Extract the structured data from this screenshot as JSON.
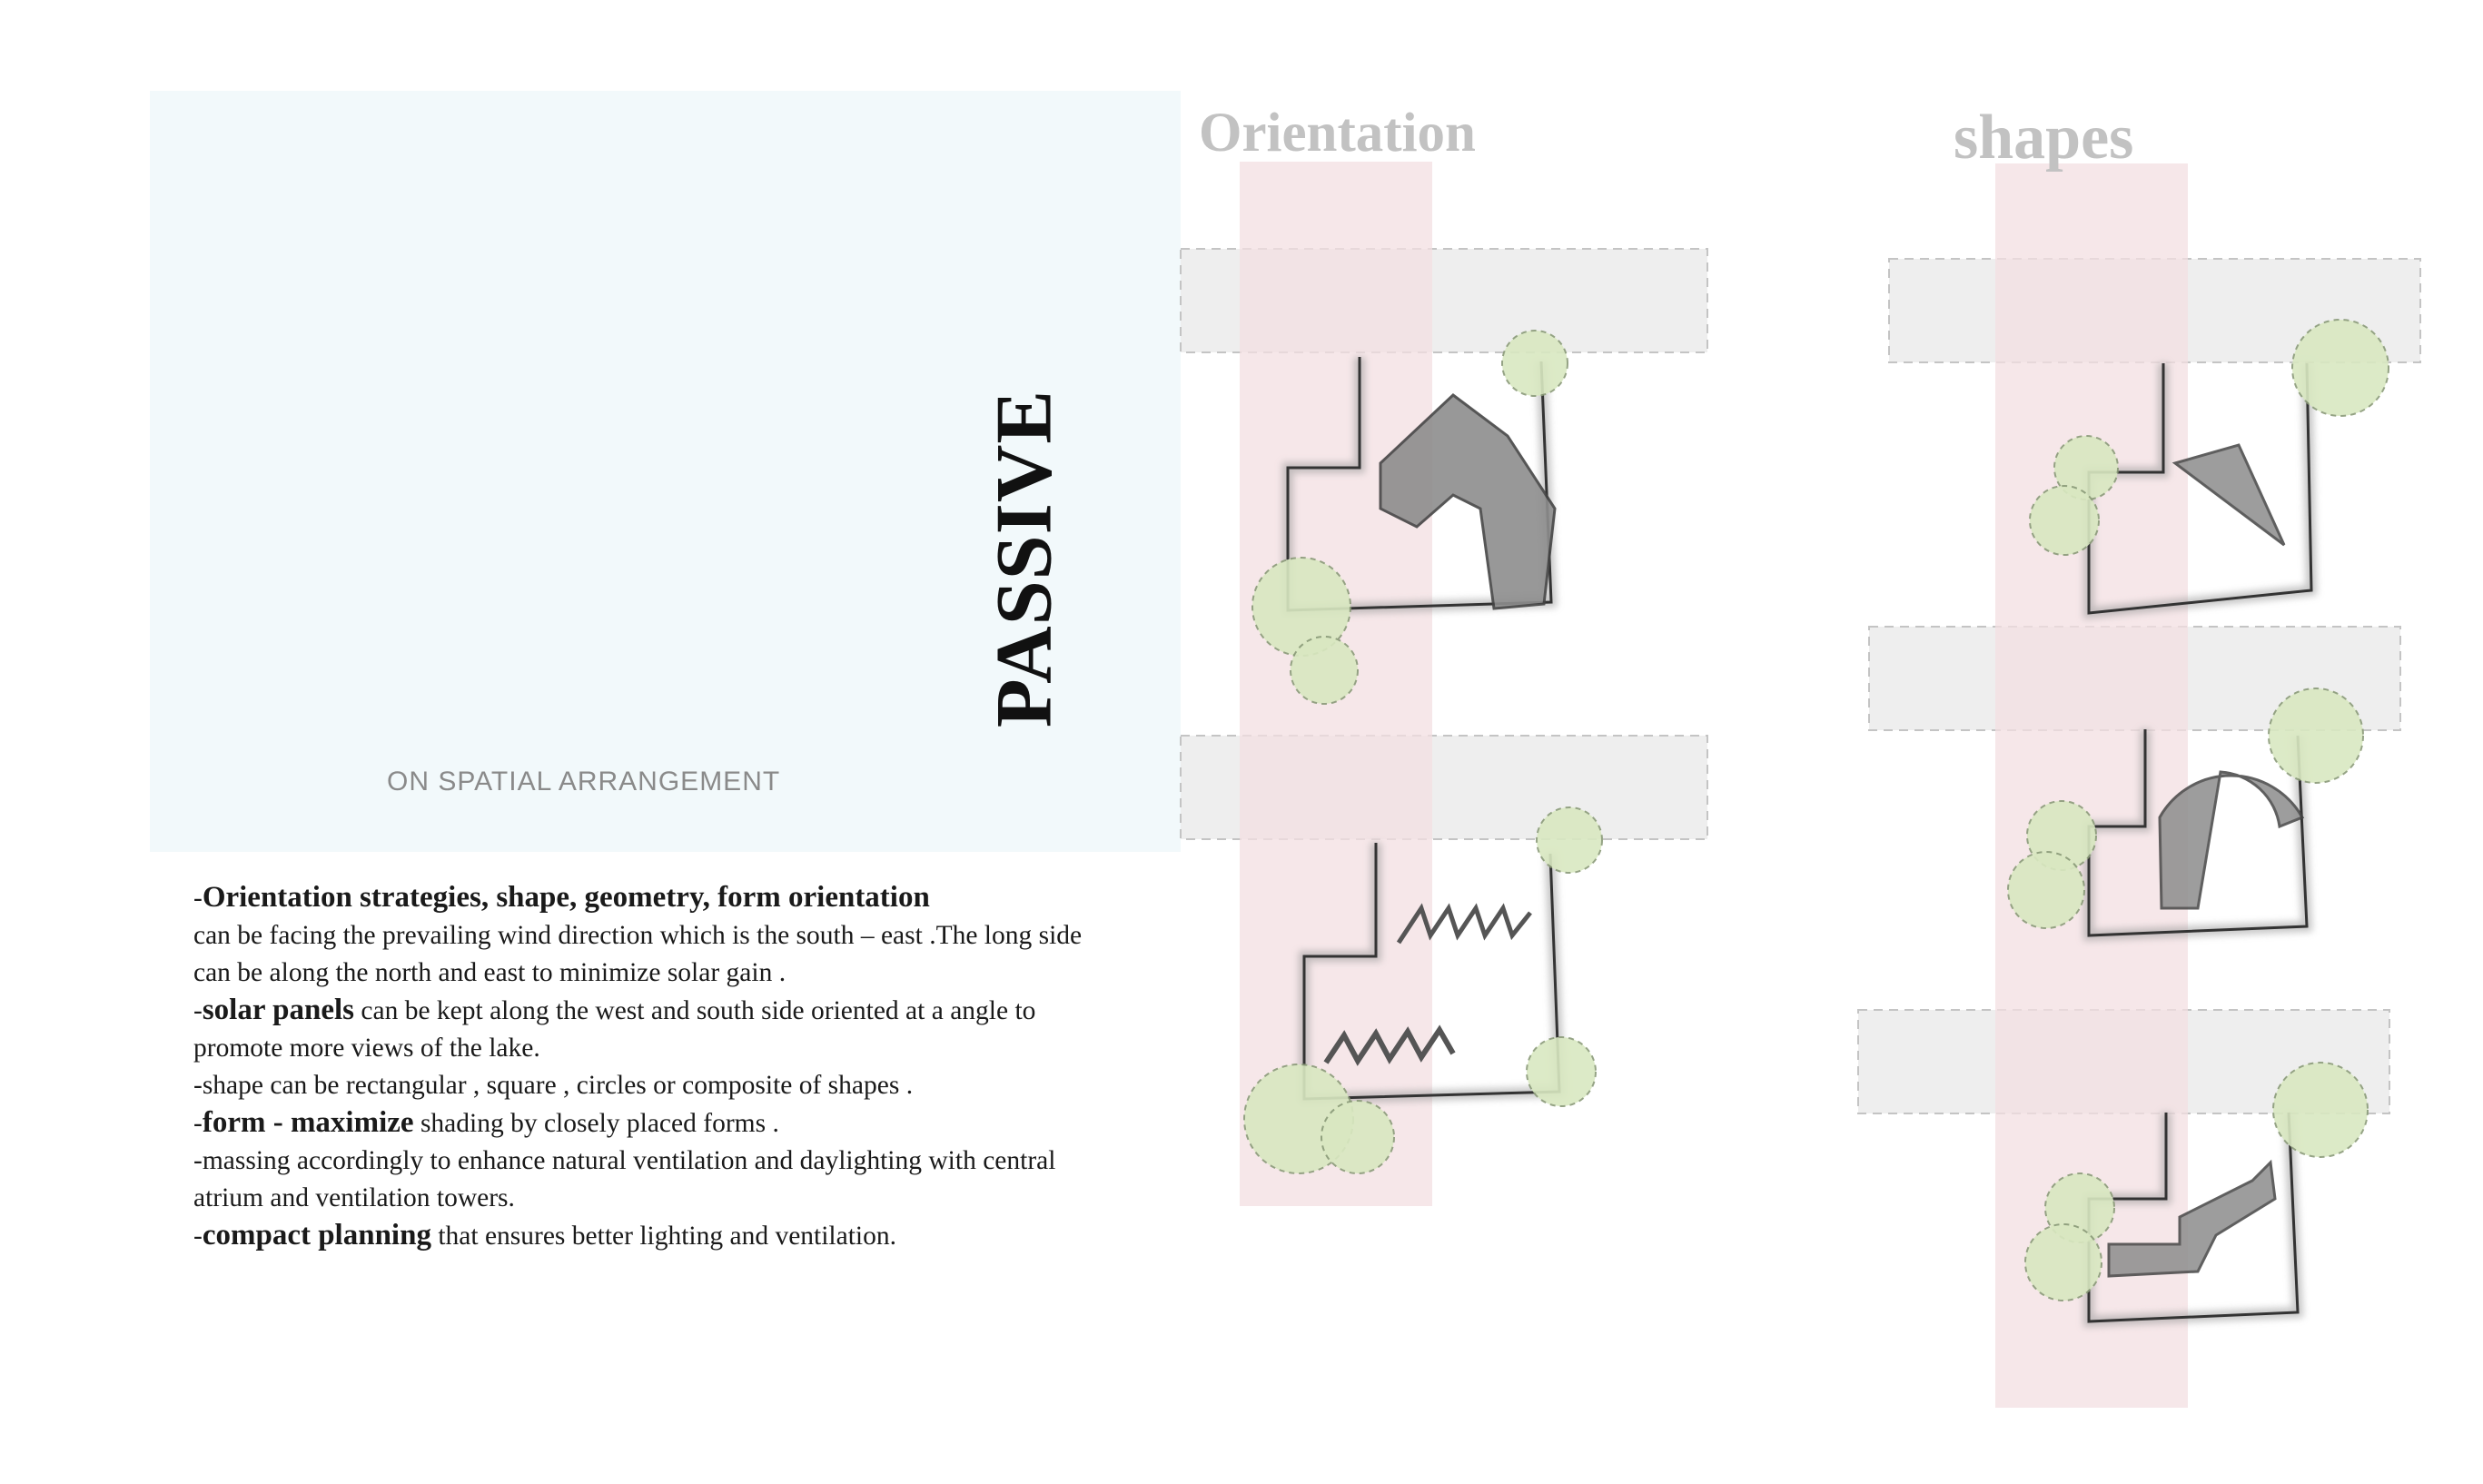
{
  "title": {
    "main": "PASSIVE",
    "subtitle": "ON SPATIAL ARRANGEMENT"
  },
  "columns": {
    "orientation": "Orientation",
    "shapes": "shapes"
  },
  "body": {
    "p1_prefix": "-",
    "p1_bold": "Orientation strategies, shape, geometry, form  orientation",
    "p1_rest": "can be facing the prevailing wind direction which is the south – east .The long side can be along the north and east to minimize solar gain .",
    "p2_prefix": "-",
    "p2_bold": "solar panels",
    "p2_rest": " can be kept along the west and south side oriented at a angle to promote more views of  the lake.",
    "p3": "-shape can be rectangular , square , circles or composite of  shapes .",
    "p4_prefix": "-",
    "p4_bold": "form - maximize",
    "p4_rest": " shading by closely placed forms .",
    "p5": " -massing accordingly to enhance natural ventilation and daylighting with central atrium and ventilation towers.",
    "p6_prefix": "-",
    "p6_bold": "compact planning",
    "p6_rest": " that ensures better lighting and ventilation."
  },
  "colors": {
    "panel": "#f2f9fb",
    "heading": "#c2c2c2",
    "pink_band": "#f5e4e6",
    "gray_band": "#eeeeee",
    "tree_fill": "#d9e8c1",
    "tree_stroke": "#8a9a78",
    "building_fill": "#8d8d8d"
  }
}
